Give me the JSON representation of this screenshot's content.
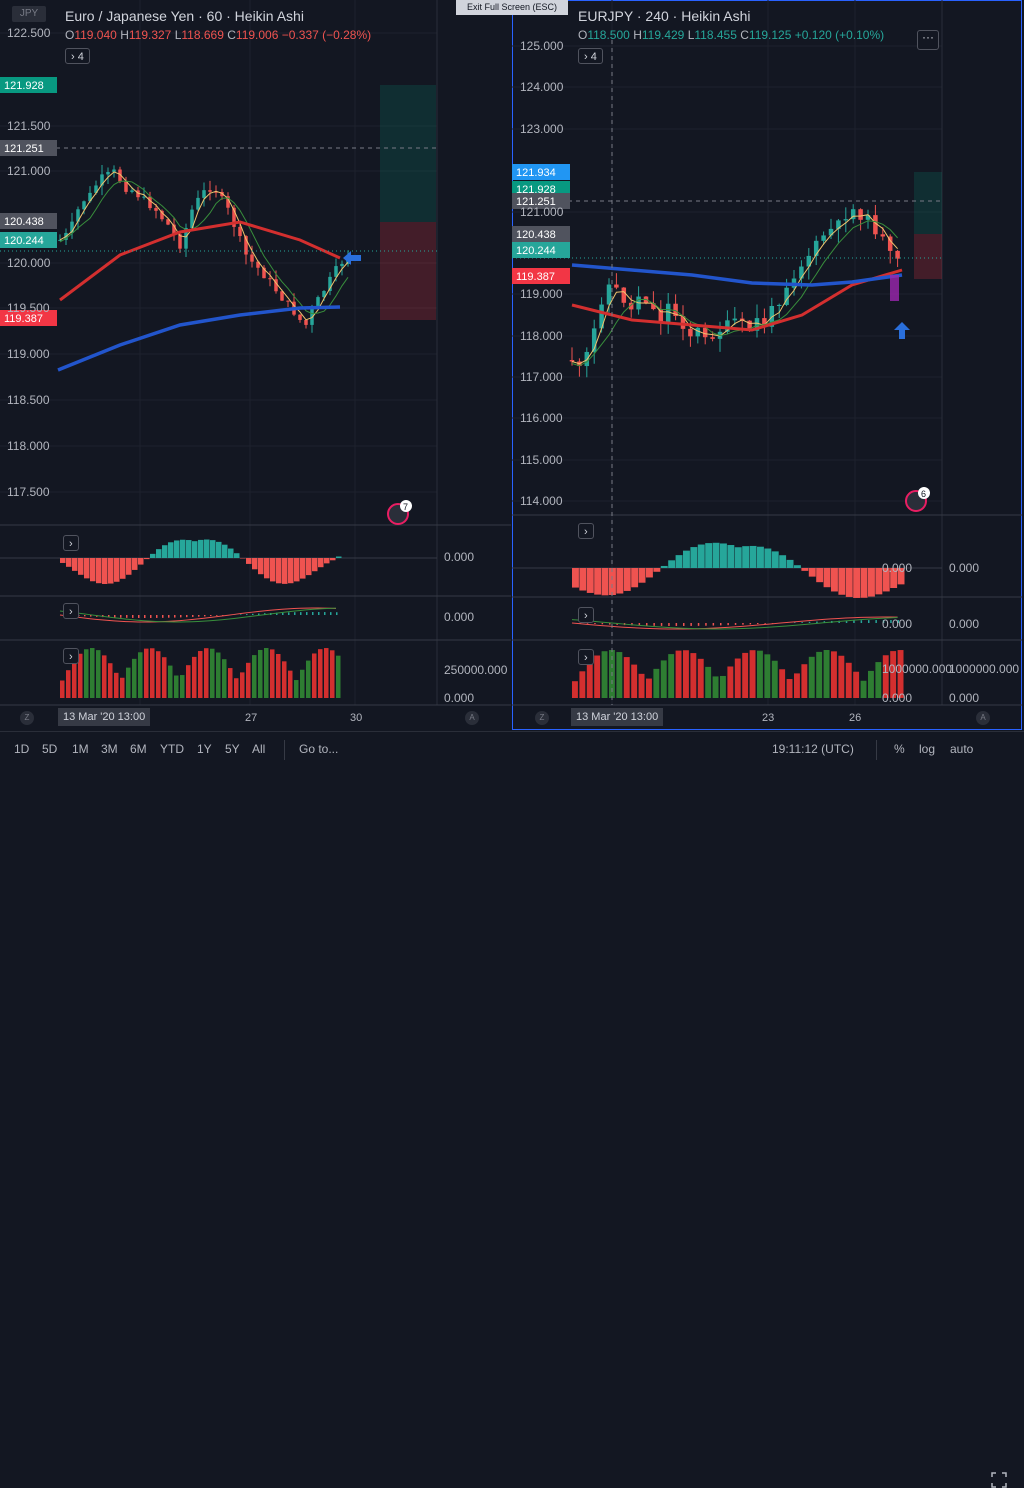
{
  "exit_fullscreen": "Exit Full Screen (ESC)",
  "left": {
    "currency": "JPY",
    "title": "Euro / Japanese Yen · 60 · Heikin Ashi",
    "ohlc": {
      "o_key": "O",
      "o": "119.040",
      "h_key": "H",
      "h": "119.327",
      "l_key": "L",
      "l": "118.669",
      "c_key": "C",
      "c": "119.006",
      "chg": "−0.337 (−0.28%)"
    },
    "indicators_toggle": "› 4",
    "price_ticks": [
      "122.500",
      "121.500",
      "121.000",
      "120.000",
      "119.500",
      "119.000",
      "118.500",
      "118.000",
      "117.500"
    ],
    "price_labels": [
      {
        "text": "121.928",
        "color": "#089981"
      },
      {
        "text": "121.251",
        "color": "#50535e"
      },
      {
        "text": "120.438",
        "color": "#50535e"
      },
      {
        "text": "120.244",
        "color": "#26a69a"
      },
      {
        "text": "119.387",
        "color": "#f23645"
      }
    ],
    "pane_values": [
      "0.000",
      "0.000",
      "250000.000",
      "0.000"
    ],
    "time_labels": [
      "27",
      "30"
    ],
    "date_label": "13 Mar '20   13:00",
    "alert_badge": "7",
    "zoom_left": "Z",
    "zoom_right": "A"
  },
  "right": {
    "title": "EURJPY · 240 · Heikin Ashi",
    "ohlc": {
      "o_key": "O",
      "o": "118.500",
      "h_key": "H",
      "h": "119.429",
      "l_key": "L",
      "l": "118.455",
      "c_key": "C",
      "c": "119.125",
      "chg": "+0.120 (+0.10%)"
    },
    "indicators_toggle": "› 4",
    "price_ticks": [
      "125.000",
      "124.000",
      "123.000",
      "121.000",
      "119.000",
      "118.000",
      "117.000",
      "116.000",
      "115.000",
      "114.000"
    ],
    "price_labels": [
      {
        "text": "121.934",
        "color": "#2196f3"
      },
      {
        "text": "121.928",
        "color": "#089981"
      },
      {
        "text": "121.251",
        "color": "#50535e"
      },
      {
        "text": "120.438",
        "color": "#50535e"
      },
      {
        "text": "120.244",
        "color": "#26a69a"
      },
      {
        "text": "119.387",
        "color": "#f23645"
      }
    ],
    "pane_values": [
      "0.000",
      "0.000",
      "1000000.000",
      "0.000"
    ],
    "time_labels": [
      "23",
      "26"
    ],
    "date_label": "13 Mar '20   13:00",
    "alert_badge": "6",
    "zoom_left": "Z",
    "zoom_right": "A",
    "more_button": "···"
  },
  "bottom_bar": {
    "ranges": [
      "1D",
      "5D",
      "1M",
      "3M",
      "6M",
      "YTD",
      "1Y",
      "5Y",
      "All"
    ],
    "goto": "Go to...",
    "clock": "19:11:12 (UTC)",
    "percent": "%",
    "log": "log",
    "auto": "auto"
  },
  "colors": {
    "up": "#26a69a",
    "down": "#ef5350",
    "ma200": "#2255cc",
    "ma_red": "#d32f2f"
  }
}
